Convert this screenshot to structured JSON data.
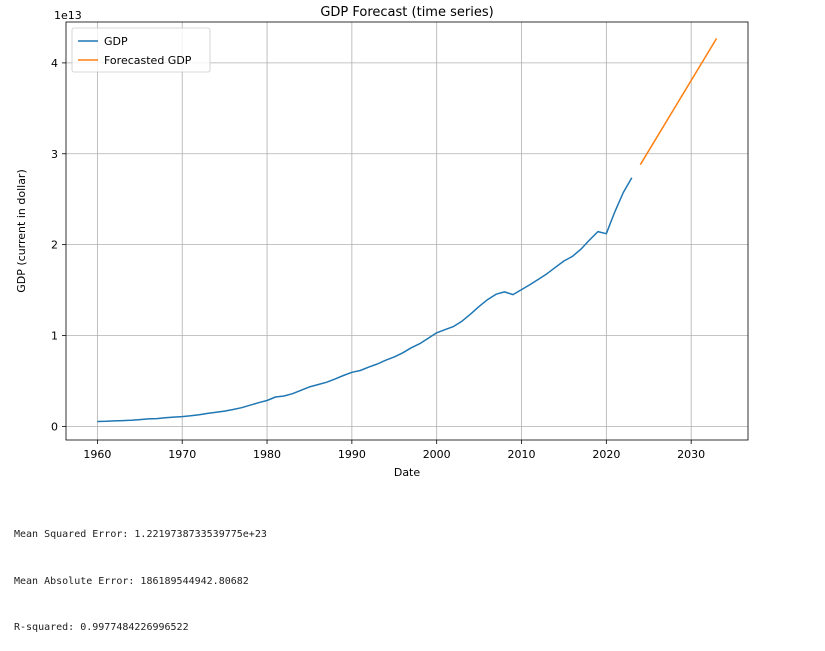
{
  "chart_data": {
    "type": "line",
    "title": "GDP Forecast (time series)",
    "xlabel": "Date",
    "ylabel": "GDP (current in dollar)",
    "y_offset_label": "1e13",
    "xlim": [
      1956.3,
      2036.7
    ],
    "ylim": [
      -0.15,
      4.45
    ],
    "xticks": [
      1960,
      1970,
      1980,
      1990,
      2000,
      2010,
      2020,
      2030
    ],
    "yticks": [
      0,
      1,
      2,
      3,
      4
    ],
    "grid": true,
    "legend_position": "top-left",
    "series": [
      {
        "name": "GDP",
        "color": "#1f77b4",
        "x": [
          1960,
          1961,
          1962,
          1963,
          1964,
          1965,
          1966,
          1967,
          1968,
          1969,
          1970,
          1971,
          1972,
          1973,
          1974,
          1975,
          1976,
          1977,
          1978,
          1979,
          1980,
          1981,
          1982,
          1983,
          1984,
          1985,
          1986,
          1987,
          1988,
          1989,
          1990,
          1991,
          1992,
          1993,
          1994,
          1995,
          1996,
          1997,
          1998,
          1999,
          2000,
          2001,
          2002,
          2003,
          2004,
          2005,
          2006,
          2007,
          2008,
          2009,
          2010,
          2011,
          2012,
          2013,
          2014,
          2015,
          2016,
          2017,
          2018,
          2019,
          2020,
          2021,
          2022,
          2023
        ],
        "y": [
          0.054,
          0.056,
          0.06,
          0.064,
          0.068,
          0.074,
          0.082,
          0.086,
          0.094,
          0.102,
          0.107,
          0.116,
          0.128,
          0.143,
          0.155,
          0.168,
          0.186,
          0.206,
          0.233,
          0.26,
          0.285,
          0.323,
          0.334,
          0.36,
          0.397,
          0.434,
          0.46,
          0.485,
          0.52,
          0.56,
          0.595,
          0.615,
          0.652,
          0.686,
          0.728,
          0.765,
          0.81,
          0.865,
          0.91,
          0.97,
          1.03,
          1.065,
          1.1,
          1.158,
          1.235,
          1.32,
          1.395,
          1.455,
          1.48,
          1.45,
          1.505,
          1.56,
          1.62,
          1.68,
          1.75,
          1.82,
          1.87,
          1.95,
          2.05,
          2.143,
          2.12,
          2.36,
          2.574,
          2.736
        ]
      },
      {
        "name": "Forecasted GDP",
        "color": "#ff7f0e",
        "x": [
          2024,
          2033
        ],
        "y": [
          2.88,
          4.27
        ]
      }
    ]
  },
  "stats": {
    "mse": "Mean Squared Error: 1.2219738733539775e+23",
    "mae": "Mean Absolute Error: 186189544942.80682",
    "r2": "R-squared: 0.9977484226996522"
  }
}
